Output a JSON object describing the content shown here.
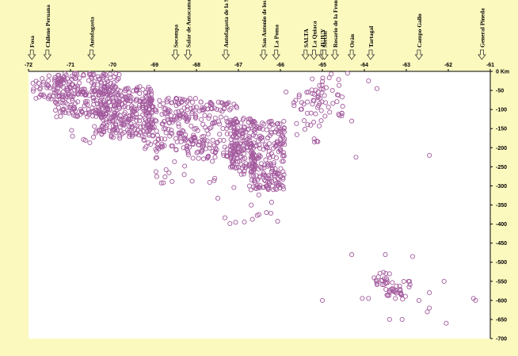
{
  "chart_data": {
    "type": "scatter",
    "title": "",
    "xlabel": "",
    "ylabel": "",
    "xlim": [
      -72,
      -61
    ],
    "ylim": [
      0,
      -700
    ],
    "x_ticks": [
      -72,
      -71,
      -70,
      -69,
      -68,
      -67,
      -66,
      -65,
      -64,
      -63,
      -62,
      -61
    ],
    "y_ticks": [
      0,
      -50,
      -100,
      -150,
      -200,
      -250,
      -300,
      -350,
      -400,
      -450,
      -500,
      -550,
      -600,
      -650,
      -700
    ],
    "y_tick_labels": [
      "0 Km",
      "-50",
      "-100",
      "-150",
      "-200",
      "-250",
      "-300",
      "-350",
      "-400",
      "-450",
      "-500",
      "-550",
      "-600",
      "-650",
      "-700"
    ],
    "grid": false,
    "marker_color": "#a35a9e",
    "plot_background": "#ffffff",
    "locations": [
      {
        "name": "Fosa",
        "lon": -71.92
      },
      {
        "name": "Chileno Peruana",
        "lon": -71.55
      },
      {
        "name": "Antofagasta",
        "lon": -70.5
      },
      {
        "name": "Socompa",
        "lon": -68.5
      },
      {
        "name": "Salar de Antacama",
        "lon": -68.2
      },
      {
        "name": "Antofagasta de la Sierra",
        "lon": -67.3
      },
      {
        "name": "San Antonio de los Cobres",
        "lon": -66.4
      },
      {
        "name": "La Poma",
        "lon": -66.1
      },
      {
        "name": "SALTA",
        "lon": -65.4
      },
      {
        "name": "La Quiaca",
        "lon": -65.2
      },
      {
        "name": "JUJUY",
        "lon": -65.0
      },
      {
        "name": "Metán",
        "lon": -64.95
      },
      {
        "name": "Rosario de la Frontera",
        "lon": -64.7
      },
      {
        "name": "Orán",
        "lon": -64.3
      },
      {
        "name": "Tartagal",
        "lon": -63.85
      },
      {
        "name": "Campo Gallo",
        "lon": -62.7
      },
      {
        "name": "General Pineda",
        "lon": -61.2
      }
    ],
    "clusters": [
      {
        "lon": [
          -71.9,
          -71.0
        ],
        "depth": [
          10,
          75
        ],
        "n": 60
      },
      {
        "lon": [
          -71.4,
          -69.8
        ],
        "depth": [
          5,
          120
        ],
        "n": 260
      },
      {
        "lon": [
          -70.3,
          -69.0
        ],
        "depth": [
          40,
          175
        ],
        "n": 230
      },
      {
        "lon": [
          -69.3,
          -68.0
        ],
        "depth": [
          70,
          210
        ],
        "n": 200
      },
      {
        "lon": [
          -68.0,
          -67.0
        ],
        "depth": [
          80,
          230
        ],
        "n": 130
      },
      {
        "lon": [
          -67.2,
          -66.6
        ],
        "depth": [
          120,
          270
        ],
        "n": 150
      },
      {
        "lon": [
          -66.7,
          -65.9
        ],
        "depth": [
          130,
          310
        ],
        "n": 200
      },
      {
        "lon": [
          -66.0,
          -65.0
        ],
        "depth": [
          40,
          200
        ],
        "n": 40
      },
      {
        "lon": [
          -65.3,
          -64.5
        ],
        "depth": [
          5,
          120
        ],
        "n": 40
      },
      {
        "lon": [
          -71.0,
          -69.5
        ],
        "depth": [
          120,
          190
        ],
        "n": 25
      },
      {
        "lon": [
          -69.0,
          -67.5
        ],
        "depth": [
          200,
          300
        ],
        "n": 25
      },
      {
        "lon": [
          -67.5,
          -66.0
        ],
        "depth": [
          280,
          400
        ],
        "n": 20
      },
      {
        "lon": [
          -63.8,
          -63.4
        ],
        "depth": [
          525,
          560
        ],
        "n": 18
      },
      {
        "lon": [
          -63.5,
          -62.9
        ],
        "depth": [
          550,
          600
        ],
        "n": 35
      }
    ],
    "points": [
      {
        "x": -64.3,
        "y": -480
      },
      {
        "x": -65.0,
        "y": -600
      },
      {
        "x": -64.05,
        "y": -595
      },
      {
        "x": -63.9,
        "y": -595
      },
      {
        "x": -63.5,
        "y": -480
      },
      {
        "x": -63.4,
        "y": -650
      },
      {
        "x": -63.1,
        "y": -650
      },
      {
        "x": -62.85,
        "y": -485
      },
      {
        "x": -62.7,
        "y": -600
      },
      {
        "x": -62.5,
        "y": -630
      },
      {
        "x": -62.45,
        "y": -620
      },
      {
        "x": -62.45,
        "y": -580
      },
      {
        "x": -62.1,
        "y": -550
      },
      {
        "x": -62.05,
        "y": -660
      },
      {
        "x": -61.4,
        "y": -595
      },
      {
        "x": -61.35,
        "y": -600
      },
      {
        "x": -62.45,
        "y": -220
      },
      {
        "x": -64.2,
        "y": -225
      },
      {
        "x": -64.3,
        "y": -130
      },
      {
        "x": -63.7,
        "y": -45
      },
      {
        "x": -63.9,
        "y": -25
      },
      {
        "x": -64.4,
        "y": -5
      }
    ]
  }
}
